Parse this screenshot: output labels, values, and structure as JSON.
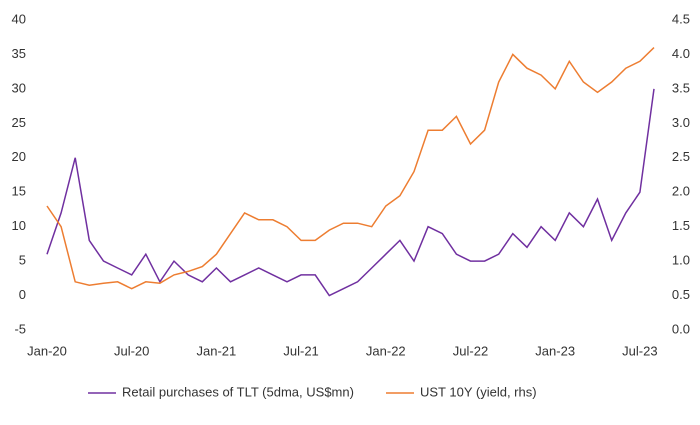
{
  "chart_data": {
    "type": "line",
    "x": [
      "2020-01",
      "2020-02",
      "2020-03",
      "2020-04",
      "2020-05",
      "2020-06",
      "2020-07",
      "2020-08",
      "2020-09",
      "2020-10",
      "2020-11",
      "2020-12",
      "2021-01",
      "2021-02",
      "2021-03",
      "2021-04",
      "2021-05",
      "2021-06",
      "2021-07",
      "2021-08",
      "2021-09",
      "2021-10",
      "2021-11",
      "2021-12",
      "2022-01",
      "2022-02",
      "2022-03",
      "2022-04",
      "2022-05",
      "2022-06",
      "2022-07",
      "2022-08",
      "2022-09",
      "2022-10",
      "2022-11",
      "2022-12",
      "2023-01",
      "2023-02",
      "2023-03",
      "2023-04",
      "2023-05",
      "2023-06",
      "2023-07",
      "2023-08"
    ],
    "series": [
      {
        "name": "Retail purchases of TLT (5dma, US$mn)",
        "color": "#7030a0",
        "axis": "y",
        "values": [
          6,
          12,
          20,
          8,
          5,
          4,
          3,
          6,
          2,
          5,
          3,
          2,
          4,
          2,
          3,
          4,
          3,
          2,
          3,
          3,
          0,
          1,
          2,
          4,
          6,
          8,
          5,
          10,
          9,
          6,
          5,
          5,
          6,
          9,
          7,
          10,
          8,
          12,
          10,
          14,
          8,
          12,
          15,
          30
        ]
      },
      {
        "name": "UST 10Y (yield, rhs)",
        "color": "#ed7d31",
        "axis": "y2",
        "values": [
          1.8,
          1.5,
          0.7,
          0.65,
          0.68,
          0.7,
          0.6,
          0.7,
          0.68,
          0.8,
          0.85,
          0.92,
          1.1,
          1.4,
          1.7,
          1.6,
          1.6,
          1.5,
          1.3,
          1.3,
          1.45,
          1.55,
          1.55,
          1.5,
          1.8,
          1.95,
          2.3,
          2.9,
          2.9,
          3.1,
          2.7,
          2.9,
          3.6,
          4.0,
          3.8,
          3.7,
          3.5,
          3.9,
          3.6,
          3.45,
          3.6,
          3.8,
          3.9,
          4.1
        ]
      }
    ],
    "xlim": [
      "2020-01",
      "2023-08"
    ],
    "xticks": [
      {
        "value": "2020-01",
        "label": "Jan-20"
      },
      {
        "value": "2020-07",
        "label": "Jul-20"
      },
      {
        "value": "2021-01",
        "label": "Jan-21"
      },
      {
        "value": "2021-07",
        "label": "Jul-21"
      },
      {
        "value": "2022-01",
        "label": "Jan-22"
      },
      {
        "value": "2022-07",
        "label": "Jul-22"
      },
      {
        "value": "2023-01",
        "label": "Jan-23"
      },
      {
        "value": "2023-07",
        "label": "Jul-23"
      }
    ],
    "ylim": [
      -5,
      40
    ],
    "yticks": [
      -5,
      0,
      5,
      10,
      15,
      20,
      25,
      30,
      35,
      40
    ],
    "y2lim": [
      0,
      4.5
    ],
    "y2ticks": [
      {
        "value": 0,
        "label": "0.0"
      },
      {
        "value": 0.5,
        "label": "0.5"
      },
      {
        "value": 1,
        "label": "1.0"
      },
      {
        "value": 1.5,
        "label": "1.5"
      },
      {
        "value": 2,
        "label": "2.0"
      },
      {
        "value": 2.5,
        "label": "2.5"
      },
      {
        "value": 3,
        "label": "3.0"
      },
      {
        "value": 3.5,
        "label": "3.5"
      },
      {
        "value": 4,
        "label": "4.0"
      },
      {
        "value": 4.5,
        "label": "4.5"
      }
    ]
  }
}
